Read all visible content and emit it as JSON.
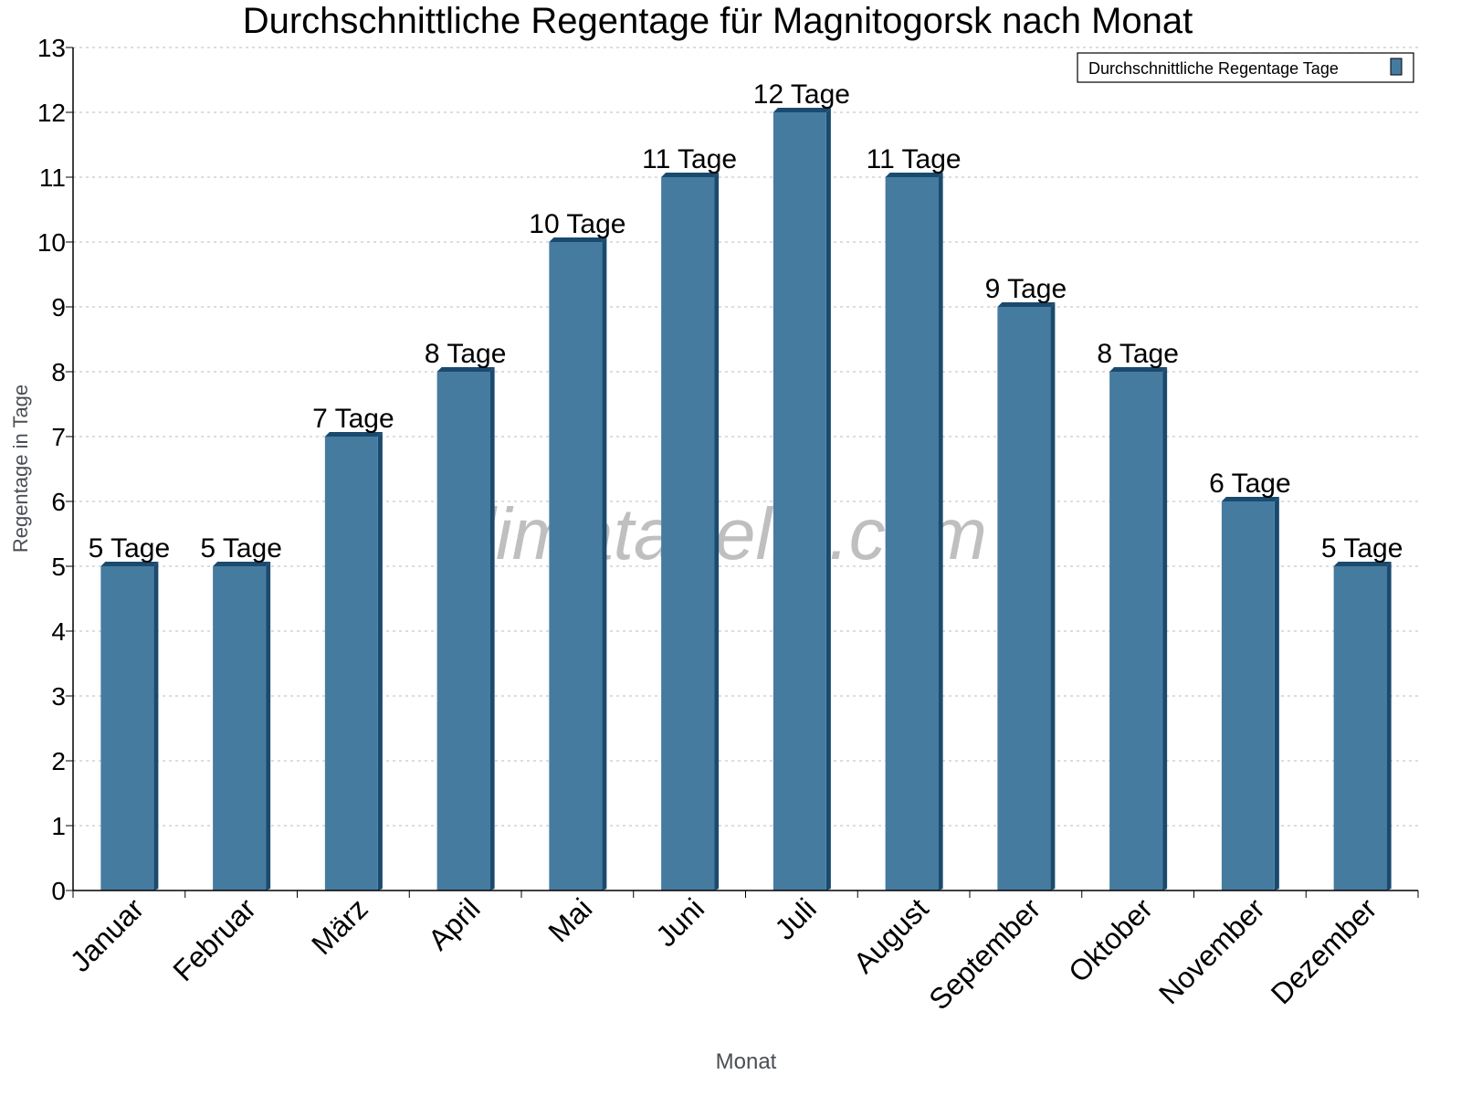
{
  "chart_data": {
    "type": "bar",
    "title": "Durchschnittliche Regentage für Magnitogorsk nach Monat",
    "xlabel": "Monat",
    "ylabel": "Regentage in Tage",
    "categories": [
      "Januar",
      "Februar",
      "März",
      "April",
      "Mai",
      "Juni",
      "Juli",
      "August",
      "September",
      "Oktober",
      "November",
      "Dezember"
    ],
    "series": [
      {
        "name": "Durchschnittliche Regentage Tage",
        "values": [
          5,
          5,
          7,
          8,
          10,
          11,
          12,
          11,
          9,
          8,
          6,
          5
        ]
      }
    ],
    "data_labels": [
      "5 Tage",
      "5 Tage",
      "7 Tage",
      "8 Tage",
      "10 Tage",
      "11 Tage",
      "12 Tage",
      "11 Tage",
      "9 Tage",
      "8 Tage",
      "6 Tage",
      "5 Tage"
    ],
    "ylim": [
      0,
      13
    ],
    "yticks": [
      "0",
      "1",
      "2",
      "3",
      "4",
      "5",
      "6",
      "7",
      "8",
      "9",
      "10",
      "11",
      "12",
      "13"
    ],
    "grid": true,
    "legend_position": "top-right",
    "colors": {
      "bar": "#467ba0",
      "bar_side": "#1a4a6e"
    },
    "watermark": "klimatabelle.com"
  }
}
